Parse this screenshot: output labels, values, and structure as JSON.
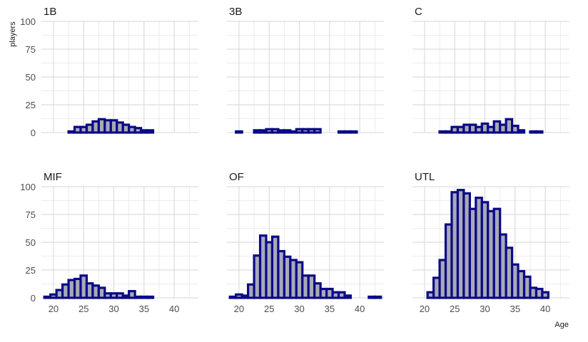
{
  "chart_data": {
    "type": "bar",
    "subtype": "faceted-histogram",
    "xlabel": "Age",
    "ylabel": "players",
    "ylim": [
      0,
      100
    ],
    "y_ticks": [
      0,
      25,
      50,
      75,
      100
    ],
    "xlim": [
      18,
      44
    ],
    "x_ticks": [
      20,
      25,
      30,
      35,
      40
    ],
    "bin_width": 1,
    "grid": true,
    "colors": {
      "bar_fill": "#a9a9b7",
      "bar_outline": "#0a0a85",
      "grid": "#d6d6d6",
      "background": "#ffffff"
    },
    "panels": [
      {
        "name": "1B",
        "x": [
          23,
          24,
          25,
          26,
          27,
          28,
          29,
          30,
          31,
          32,
          33,
          34,
          35,
          36
        ],
        "values": [
          1,
          5,
          5,
          7,
          10,
          12,
          11,
          11,
          9,
          7,
          5,
          4,
          2,
          2
        ]
      },
      {
        "name": "3B",
        "x": [
          20,
          23,
          24,
          25,
          26,
          27,
          28,
          29,
          30,
          31,
          32,
          33,
          37,
          38,
          39
        ],
        "values": [
          1,
          2,
          2,
          3,
          3,
          2,
          2,
          1,
          3,
          3,
          3,
          3,
          1,
          1,
          1
        ]
      },
      {
        "name": "C",
        "x": [
          23,
          24,
          25,
          26,
          27,
          28,
          29,
          30,
          31,
          32,
          33,
          34,
          35,
          36,
          38,
          39
        ],
        "values": [
          1,
          1,
          5,
          5,
          7,
          7,
          5,
          8,
          5,
          10,
          7,
          12,
          6,
          2,
          1,
          1
        ]
      },
      {
        "name": "MIF",
        "x": [
          19,
          20,
          21,
          22,
          23,
          24,
          25,
          26,
          27,
          28,
          29,
          30,
          31,
          32,
          33,
          34,
          35,
          36
        ],
        "values": [
          1,
          3,
          7,
          12,
          16,
          17,
          20,
          13,
          11,
          9,
          4,
          4,
          4,
          2,
          6,
          1,
          1,
          1
        ]
      },
      {
        "name": "OF",
        "x": [
          19,
          20,
          21,
          22,
          23,
          24,
          25,
          26,
          27,
          28,
          29,
          30,
          31,
          32,
          33,
          34,
          35,
          36,
          37,
          38,
          42,
          43
        ],
        "values": [
          1,
          3,
          2,
          12,
          38,
          56,
          50,
          55,
          42,
          37,
          34,
          32,
          20,
          20,
          13,
          8,
          8,
          5,
          5,
          2,
          1,
          1
        ]
      },
      {
        "name": "UTL",
        "x": [
          21,
          22,
          23,
          24,
          25,
          26,
          27,
          28,
          29,
          30,
          31,
          32,
          33,
          34,
          35,
          36,
          37,
          38,
          39,
          40
        ],
        "values": [
          5,
          18,
          34,
          66,
          95,
          97,
          94,
          80,
          90,
          86,
          78,
          80,
          57,
          45,
          30,
          24,
          19,
          9,
          8,
          5
        ]
      }
    ]
  }
}
